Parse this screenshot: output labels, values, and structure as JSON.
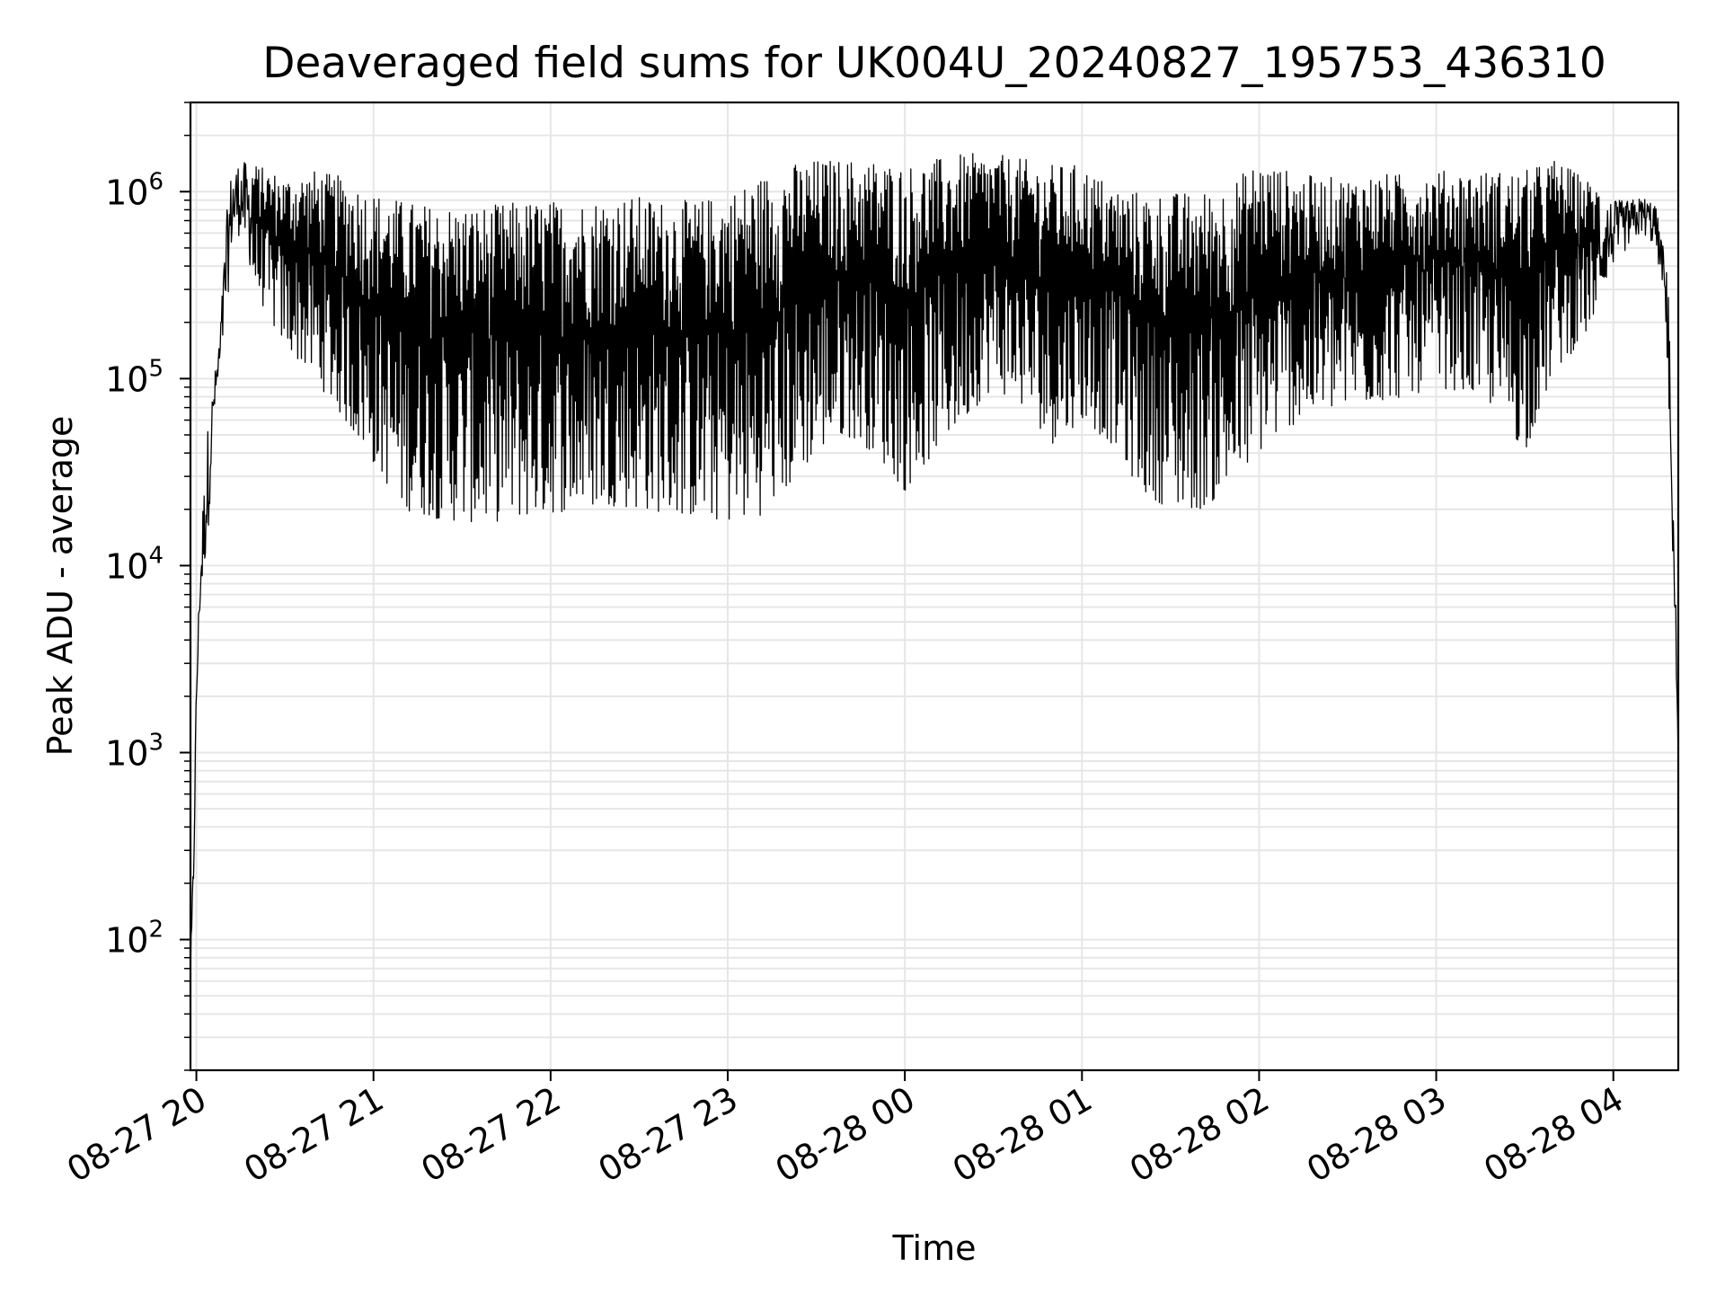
{
  "chart_data": {
    "type": "line",
    "title": "Deaveraged field sums for UK004U_20240827_195753_436310",
    "xlabel": "Time",
    "ylabel": "Peak ADU - average",
    "y_scale": "log",
    "ylim": [
      20,
      3000000
    ],
    "xlim": [
      "2024-08-27 19:58",
      "2024-08-28 04:22"
    ],
    "grid": true,
    "line_color": "#000000",
    "grid_color": "#e6e6e6",
    "x_ticks": [
      "08-27 20",
      "08-27 21",
      "08-27 22",
      "08-27 23",
      "08-28 00",
      "08-28 01",
      "08-28 02",
      "08-28 03",
      "08-28 04"
    ],
    "x_tick_times": [
      "2024-08-27 20:00",
      "2024-08-27 21:00",
      "2024-08-27 22:00",
      "2024-08-27 23:00",
      "2024-08-28 00:00",
      "2024-08-28 01:00",
      "2024-08-28 02:00",
      "2024-08-28 03:00",
      "2024-08-28 04:00"
    ],
    "y_ticks": [
      {
        "value": 100,
        "base": "10",
        "exp": "2"
      },
      {
        "value": 1000,
        "base": "10",
        "exp": "3"
      },
      {
        "value": 10000,
        "base": "10",
        "exp": "4"
      },
      {
        "value": 100000,
        "base": "10",
        "exp": "5"
      },
      {
        "value": 1000000,
        "base": "10",
        "exp": "6"
      }
    ],
    "series": [
      {
        "x": [
          "2024-08-27 19:58",
          "2024-08-27 19:59",
          "2024-08-27 20:00",
          "2024-08-27 20:01",
          "2024-08-27 20:02",
          "2024-08-27 20:04",
          "2024-08-27 20:06",
          "2024-08-27 20:08",
          "2024-08-27 20:10",
          "2024-08-27 20:12",
          "2024-08-27 20:15",
          "2024-08-27 20:18",
          "2024-08-27 20:20",
          "2024-08-27 20:25",
          "2024-08-27 20:30",
          "2024-08-27 20:40",
          "2024-08-27 20:50",
          "2024-08-27 21:00",
          "2024-08-27 21:10",
          "2024-08-27 21:20",
          "2024-08-27 21:30",
          "2024-08-27 21:40",
          "2024-08-27 21:50",
          "2024-08-27 22:00",
          "2024-08-27 22:10",
          "2024-08-27 22:20",
          "2024-08-27 22:30",
          "2024-08-27 22:40",
          "2024-08-27 22:50",
          "2024-08-27 23:00",
          "2024-08-27 23:10",
          "2024-08-27 23:20",
          "2024-08-27 23:30",
          "2024-08-27 23:40",
          "2024-08-27 23:50",
          "2024-08-28 00:00",
          "2024-08-28 00:10",
          "2024-08-28 00:20",
          "2024-08-28 00:30",
          "2024-08-28 00:40",
          "2024-08-28 00:50",
          "2024-08-28 01:00",
          "2024-08-28 01:10",
          "2024-08-28 01:20",
          "2024-08-28 01:30",
          "2024-08-28 01:40",
          "2024-08-28 01:50",
          "2024-08-28 02:00",
          "2024-08-28 02:10",
          "2024-08-28 02:20",
          "2024-08-28 02:30",
          "2024-08-28 02:40",
          "2024-08-28 02:50",
          "2024-08-28 03:00",
          "2024-08-28 03:10",
          "2024-08-28 03:20",
          "2024-08-28 03:30",
          "2024-08-28 03:40",
          "2024-08-28 03:50",
          "2024-08-28 04:00",
          "2024-08-28 04:05",
          "2024-08-28 04:10",
          "2024-08-28 04:14",
          "2024-08-28 04:17",
          "2024-08-28 04:19",
          "2024-08-28 04:20",
          "2024-08-28 04:21",
          "2024-08-28 04:22"
        ],
        "low": [
          50,
          150,
          1500,
          5000,
          7000,
          15000,
          60000,
          100000,
          200000,
          500000,
          600000,
          400000,
          300000,
          200000,
          150000,
          100000,
          60000,
          35000,
          20000,
          18000,
          17000,
          17000,
          18000,
          19000,
          20000,
          21000,
          20000,
          19000,
          18000,
          17000,
          18000,
          25000,
          40000,
          50000,
          40000,
          25000,
          40000,
          60000,
          90000,
          70000,
          45000,
          60000,
          45000,
          25000,
          20000,
          20000,
          25000,
          40000,
          55000,
          65000,
          70000,
          75000,
          80000,
          90000,
          85000,
          70000,
          40000,
          110000,
          160000,
          400000,
          500000,
          600000,
          500000,
          300000,
          60000,
          10000,
          3000,
          700
        ],
        "high": [
          80,
          300,
          2500,
          8000,
          20000,
          60000,
          100000,
          180000,
          700000,
          1400000,
          1500000,
          1400000,
          1400000,
          1300000,
          1200000,
          1300000,
          1200000,
          1000000,
          900000,
          850000,
          850000,
          850000,
          900000,
          900000,
          900000,
          950000,
          950000,
          900000,
          900000,
          1000000,
          1200000,
          1400000,
          1500000,
          1500000,
          1500000,
          1400000,
          1500000,
          1600000,
          1600000,
          1500000,
          1400000,
          1400000,
          1100000,
          1000000,
          1000000,
          1000000,
          1100000,
          1500000,
          1300000,
          1200000,
          1200000,
          1250000,
          1250000,
          1300000,
          1300000,
          1300000,
          1300000,
          1500000,
          1200000,
          900000,
          900000,
          950000,
          900000,
          500000,
          300000,
          30000,
          8000,
          2000
        ]
      }
    ]
  }
}
